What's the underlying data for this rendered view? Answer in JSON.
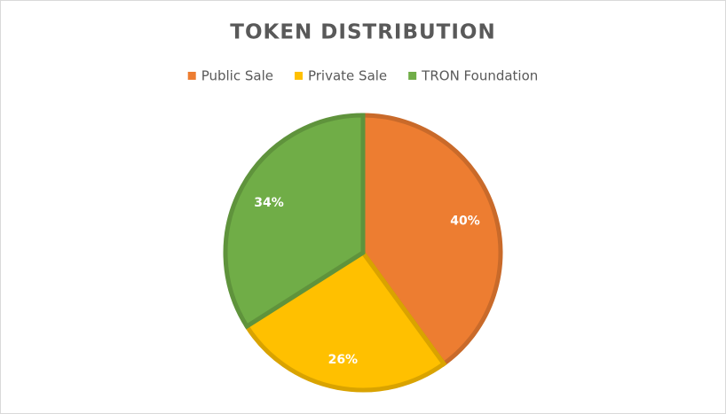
{
  "chart_data": {
    "type": "pie",
    "title": "TOKEN DISTRIBUTION",
    "categories": [
      "Public Sale",
      "Private Sale",
      "TRON Foundation"
    ],
    "values": [
      40,
      26,
      34
    ],
    "value_labels": [
      "40%",
      "26%",
      "34%"
    ],
    "colors": [
      "#ED7D31",
      "#FFC000",
      "#70AD47"
    ],
    "legend": "top"
  }
}
